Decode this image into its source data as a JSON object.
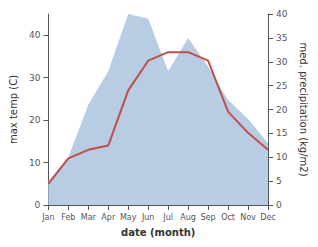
{
  "chart_data": {
    "type": "line",
    "categories": [
      "Jan",
      "Feb",
      "Mar",
      "Apr",
      "May",
      "Jun",
      "Jul",
      "Aug",
      "Sep",
      "Oct",
      "Nov",
      "Dec"
    ],
    "series": [
      {
        "type": "area",
        "color": "#b8cce4",
        "axis": "y2",
        "values": [
          5,
          10,
          21,
          28,
          40,
          39,
          28,
          35,
          29,
          22,
          18,
          13
        ]
      },
      {
        "type": "line",
        "color": "#c0504d",
        "values": [
          5,
          11,
          13,
          14,
          27,
          34,
          36,
          36,
          34,
          22,
          17,
          13
        ]
      }
    ],
    "xlabel": "date (month)",
    "ylabel": "max temp (C)",
    "y2label": "med. precipitation (kg/m2)",
    "ylim": [
      0,
      45
    ],
    "yticks": [
      0,
      10,
      20,
      30,
      40
    ],
    "y2lim": [
      0,
      40
    ],
    "y2ticks": [
      0,
      5,
      10,
      15,
      20,
      25,
      30,
      35,
      40
    ],
    "grid": false
  }
}
